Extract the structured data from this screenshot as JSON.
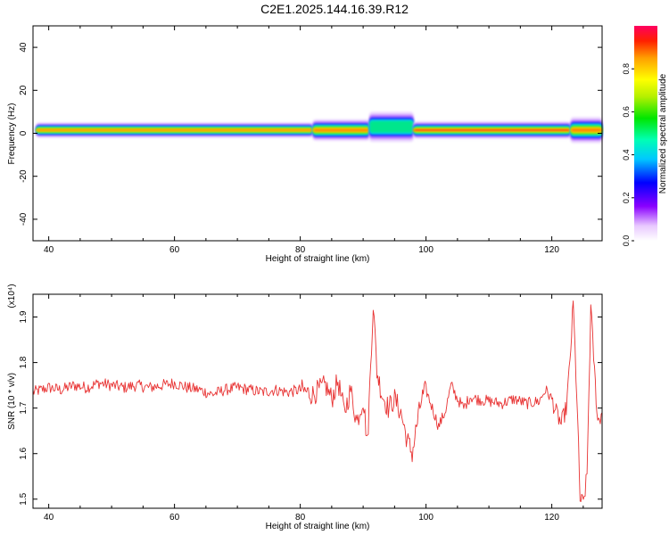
{
  "page_title": "C2E1.2025.144.16.39.R12",
  "chart_data": [
    {
      "type": "heatmap",
      "name": "spectrogram",
      "xlabel": "Height of straight line (km)",
      "ylabel": "Frequency (Hz)",
      "xlim": [
        37.5,
        128
      ],
      "ylim": [
        -50,
        50
      ],
      "x_ticks": [
        40,
        60,
        80,
        100,
        120
      ],
      "y_ticks": [
        40,
        20,
        0,
        -20,
        -40
      ],
      "y_tick_labels": [
        "40",
        "20",
        "0",
        "-20",
        "-40"
      ],
      "colorbar": {
        "label": "Normalized spectral amplitude",
        "range": [
          0,
          1
        ],
        "ticks": [
          0.0,
          0.2,
          0.4,
          0.6,
          0.8
        ],
        "tick_labels": [
          "0.0",
          "0.2",
          "0.4",
          "0.6",
          "0.8"
        ]
      },
      "band_segments": [
        {
          "x_start": 38.0,
          "x_end": 82.0,
          "center_hz": 1.5,
          "half_width_hz": 3.5,
          "peak": 0.9
        },
        {
          "x_start": 82.0,
          "x_end": 91.0,
          "center_hz": 1.5,
          "half_width_hz": 5.0,
          "peak": 0.85
        },
        {
          "x_start": 91.0,
          "x_end": 98.0,
          "center_hz": 3.0,
          "half_width_hz": 7.0,
          "peak": 0.55
        },
        {
          "x_start": 98.0,
          "x_end": 123.0,
          "center_hz": 1.5,
          "half_width_hz": 4.0,
          "peak": 0.95
        },
        {
          "x_start": 123.0,
          "x_end": 128.0,
          "center_hz": 1.5,
          "half_width_hz": 6.0,
          "peak": 0.9
        }
      ]
    },
    {
      "type": "line",
      "name": "snr",
      "xlabel": "Height of straight line (km)",
      "ylabel": "SNR (10 * v/v)",
      "multiplier_label": "(x10⁴)",
      "xlim": [
        37.5,
        128
      ],
      "ylim": [
        1.48,
        1.95
      ],
      "x_ticks": [
        40,
        60,
        80,
        100,
        120
      ],
      "y_ticks": [
        1.9,
        1.8,
        1.7,
        1.6,
        1.5
      ],
      "y_tick_labels": [
        "1.9",
        "1.8",
        "1.7",
        "1.6",
        "1.5"
      ],
      "line_color": "#e83232",
      "series": [
        {
          "x": [
            37.5,
            40,
            42,
            44,
            46,
            48,
            50,
            52,
            54,
            56,
            58,
            60,
            62,
            64,
            66,
            68,
            70,
            72,
            74,
            76,
            78,
            80,
            82,
            84,
            85,
            86,
            87,
            88,
            89,
            90,
            90.7,
            91.2,
            91.6,
            92.2,
            93,
            94,
            95,
            96,
            97,
            97.8,
            98.5,
            99.3,
            100,
            101,
            102,
            103,
            104,
            105,
            106,
            107,
            108,
            110,
            112,
            114,
            116,
            118,
            119,
            120,
            120.7,
            121.5,
            122.3,
            122.9,
            123.4,
            124,
            124.5,
            125,
            125.6,
            126.2,
            126.8,
            127.3,
            128
          ],
          "y": [
            1.735,
            1.745,
            1.74,
            1.75,
            1.745,
            1.755,
            1.75,
            1.745,
            1.75,
            1.745,
            1.75,
            1.755,
            1.745,
            1.74,
            1.73,
            1.74,
            1.745,
            1.74,
            1.735,
            1.74,
            1.735,
            1.74,
            1.73,
            1.75,
            1.72,
            1.76,
            1.69,
            1.74,
            1.67,
            1.72,
            1.62,
            1.8,
            1.93,
            1.78,
            1.73,
            1.7,
            1.72,
            1.69,
            1.63,
            1.6,
            1.66,
            1.72,
            1.74,
            1.7,
            1.66,
            1.69,
            1.75,
            1.72,
            1.7,
            1.725,
            1.72,
            1.715,
            1.71,
            1.72,
            1.71,
            1.715,
            1.74,
            1.72,
            1.69,
            1.665,
            1.7,
            1.8,
            1.93,
            1.72,
            1.5,
            1.49,
            1.55,
            1.92,
            1.78,
            1.67,
            1.69
          ]
        }
      ]
    }
  ]
}
